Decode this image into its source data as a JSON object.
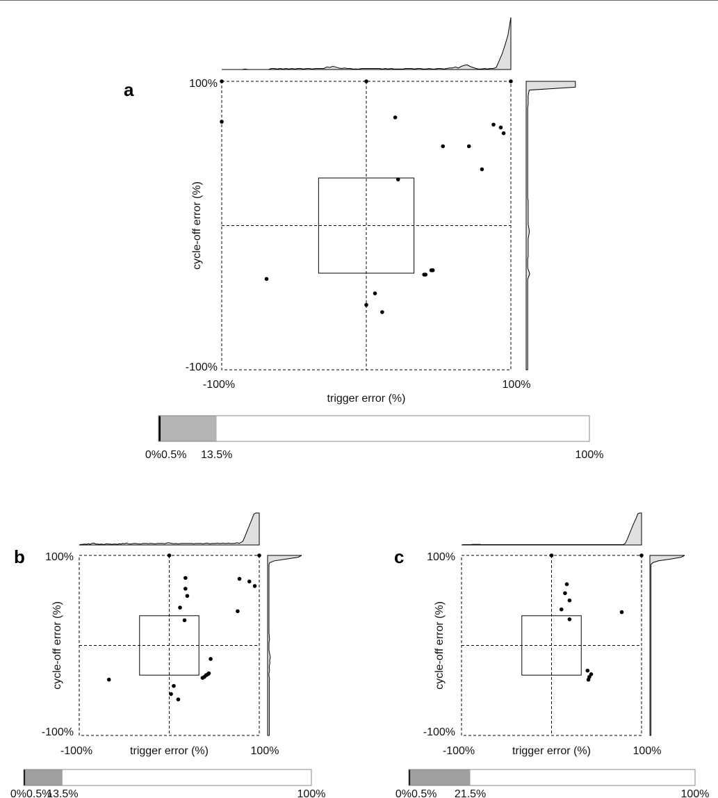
{
  "colors": {
    "marginal_fill": "#e0e0e0",
    "bar_fill_a": "#b4b4b4",
    "bar_fill_bc": "#a0a0a0",
    "ink": "#000000"
  },
  "chart_data": [
    {
      "panel": "a",
      "type": "scatter",
      "xlabel": "trigger error (%)",
      "ylabel": "cycle-off error (%)",
      "xlim": [
        -100,
        100
      ],
      "ylim": [
        -100,
        100
      ],
      "x_tick_labels": [
        "-100%",
        "100%"
      ],
      "y_tick_labels": [
        "100%",
        "-100%"
      ],
      "reference_lines": {
        "x": 0,
        "y": 0
      },
      "tolerance_box": {
        "x": [
          -33,
          33
        ],
        "y": [
          -33,
          33
        ]
      },
      "points": [
        [
          -100,
          100
        ],
        [
          0,
          100
        ],
        [
          100,
          100
        ],
        [
          -100,
          72
        ],
        [
          20,
          75
        ],
        [
          53,
          55
        ],
        [
          71,
          55
        ],
        [
          88,
          70
        ],
        [
          93,
          68
        ],
        [
          95,
          64
        ],
        [
          22,
          32
        ],
        [
          80,
          39
        ],
        [
          -69,
          -37
        ],
        [
          40,
          -34
        ],
        [
          41,
          -34
        ],
        [
          45,
          -31
        ],
        [
          46,
          -31
        ],
        [
          6,
          -47
        ],
        [
          0,
          -55
        ],
        [
          11,
          -60
        ]
      ],
      "top_marginal": [
        0,
        0,
        0,
        0,
        0,
        0,
        0,
        0,
        0.01,
        0,
        0,
        0,
        0,
        0,
        0,
        0,
        0,
        0.02,
        0.02,
        0.01,
        0.02,
        0.01,
        0.02,
        0.01,
        0.02,
        0.01,
        0.02,
        0.02,
        0.01,
        0.02,
        0.02,
        0.01,
        0.02,
        0.02,
        0.02,
        0.02,
        0.05,
        0.04,
        0.06,
        0.05,
        0.03,
        0.02,
        0.03,
        0.02,
        0.02,
        0.01,
        0.01,
        0.01,
        0.02,
        0.02,
        0.02,
        0.02,
        0.02,
        0.02,
        0.02,
        0.01,
        0.02,
        0.01,
        0.02,
        0.01,
        0.01,
        0.01,
        0.01,
        0.02,
        0.02,
        0.02,
        0.01,
        0.02,
        0.02,
        0.01,
        0.01,
        0.02,
        0.01,
        0.01,
        0.02,
        0.02,
        0.01,
        0.02,
        0.03,
        0.03,
        0.05,
        0.03,
        0.06,
        0.08,
        0.09,
        0.06,
        0.04,
        0.02,
        0.01,
        0.01,
        0.02,
        0.01,
        0.02,
        0.02,
        0.04,
        0.17,
        0.3,
        0.47,
        0.66,
        1.0
      ],
      "right_marginal": [
        0.97,
        0.97,
        0.97,
        0.06,
        0.05,
        0.04,
        0.04,
        0.04,
        0.04,
        0.03,
        0.03,
        0.03,
        0.03,
        0.03,
        0.03,
        0.03,
        0.03,
        0.03,
        0.03,
        0.03,
        0.03,
        0.03,
        0.03,
        0.03,
        0.03,
        0.03,
        0.03,
        0.03,
        0.03,
        0.03,
        0.03,
        0.03,
        0.03,
        0.03,
        0.03,
        0.03,
        0.03,
        0.03,
        0.03,
        0.03,
        0.03,
        0.04,
        0.04,
        0.04,
        0.04,
        0.04,
        0.04,
        0.04,
        0.04,
        0.04,
        0.05,
        0.06,
        0.06,
        0.05,
        0.04,
        0.04,
        0.04,
        0.04,
        0.04,
        0.04,
        0.04,
        0.03,
        0.03,
        0.03,
        0.03,
        0.05,
        0.07,
        0.05,
        0.03,
        0.03,
        0.03,
        0.03,
        0.03,
        0.03,
        0.03,
        0.03,
        0.03,
        0.03,
        0.03,
        0.03,
        0.03,
        0.03,
        0.03,
        0.03,
        0.03,
        0.03,
        0.03,
        0.03,
        0.03,
        0.03,
        0.03,
        0.03,
        0.03,
        0.03,
        0.03,
        0.03,
        0.03,
        0.03,
        0.03,
        0.03
      ],
      "summary_bar": {
        "segments": [
          {
            "label": "0%",
            "value": 0.5,
            "color": "#000000"
          },
          {
            "label": "0.5%",
            "value": 13.0,
            "color": "#b4b4b4"
          },
          {
            "label": "13.5%",
            "value": 86.5,
            "color": "#ffffff"
          }
        ],
        "tick_labels": [
          "0%",
          "0.5%",
          "13.5%",
          "100%"
        ],
        "tick_positions": [
          0,
          0.5,
          13.5,
          100
        ]
      }
    },
    {
      "panel": "b",
      "type": "scatter",
      "xlabel": "trigger error (%)",
      "ylabel": "cycle-off error (%)",
      "xlim": [
        -100,
        100
      ],
      "ylim": [
        -100,
        100
      ],
      "x_tick_labels": [
        "-100%",
        "100%"
      ],
      "y_tick_labels": [
        "100%",
        "-100%"
      ],
      "reference_lines": {
        "x": 0,
        "y": 0
      },
      "tolerance_box": {
        "x": [
          -33,
          33
        ],
        "y": [
          -33,
          33
        ]
      },
      "points": [
        [
          0,
          100
        ],
        [
          100,
          100
        ],
        [
          18,
          75
        ],
        [
          18,
          63
        ],
        [
          20,
          55
        ],
        [
          12,
          42
        ],
        [
          17,
          28
        ],
        [
          78,
          74
        ],
        [
          89,
          71
        ],
        [
          95,
          66
        ],
        [
          76,
          38
        ],
        [
          46,
          -15
        ],
        [
          44,
          -31
        ],
        [
          43,
          -32
        ],
        [
          41,
          -33
        ],
        [
          39,
          -35
        ],
        [
          37,
          -36
        ],
        [
          -67,
          -38
        ],
        [
          5,
          -45
        ],
        [
          2,
          -54
        ],
        [
          10,
          -60
        ]
      ],
      "top_marginal": [
        0,
        0.02,
        0.02,
        0.03,
        0.02,
        0.04,
        0.02,
        0.05,
        0.06,
        0.03,
        0.03,
        0.02,
        0.03,
        0.02,
        0.02,
        0.04,
        0.03,
        0.03,
        0.02,
        0.03,
        0.03,
        0.02,
        0.04,
        0.03,
        0.05,
        0.04,
        0.06,
        0.04,
        0.03,
        0.04,
        0.05,
        0.05,
        0.04,
        0.04,
        0.03,
        0.05,
        0.05,
        0.05,
        0.04,
        0.05,
        0.05,
        0.04,
        0.04,
        0.05,
        0.05,
        0.05,
        0.05,
        0.04,
        0.06,
        0.07,
        0.06,
        0.05,
        0.04,
        0.05,
        0.04,
        0.04,
        0.05,
        0.05,
        0.05,
        0.05,
        0.05,
        0.05,
        0.05,
        0.04,
        0.05,
        0.05,
        0.05,
        0.05,
        0.04,
        0.05,
        0.06,
        0.05,
        0.04,
        0.05,
        0.05,
        0.05,
        0.06,
        0.05,
        0.05,
        0.06,
        0.05,
        0.05,
        0.06,
        0.05,
        0.05,
        0.05,
        0.06,
        0.07,
        0.05,
        0.08,
        0.12,
        0.25,
        0.39,
        0.53,
        0.67,
        0.81,
        0.96,
        1.0,
        1.0,
        1.0
      ],
      "right_marginal": [
        1.0,
        0.9,
        0.55,
        0.2,
        0.06,
        0.04,
        0.04,
        0.04,
        0.04,
        0.04,
        0.04,
        0.04,
        0.04,
        0.04,
        0.04,
        0.04,
        0.04,
        0.04,
        0.04,
        0.04,
        0.04,
        0.04,
        0.04,
        0.04,
        0.04,
        0.04,
        0.04,
        0.04,
        0.04,
        0.04,
        0.04,
        0.04,
        0.04,
        0.04,
        0.04,
        0.04,
        0.04,
        0.04,
        0.04,
        0.04,
        0.04,
        0.04,
        0.04,
        0.04,
        0.05,
        0.05,
        0.06,
        0.05,
        0.04,
        0.04,
        0.04,
        0.04,
        0.04,
        0.05,
        0.06,
        0.07,
        0.08,
        0.07,
        0.06,
        0.07,
        0.06,
        0.05,
        0.05,
        0.06,
        0.05,
        0.04,
        0.04,
        0.05,
        0.06,
        0.05,
        0.05,
        0.05,
        0.05,
        0.05,
        0.05,
        0.05,
        0.05,
        0.05,
        0.05,
        0.05,
        0.05,
        0.05,
        0.05,
        0.05,
        0.05,
        0.05,
        0.05,
        0.05,
        0.05,
        0.05,
        0.05,
        0.05,
        0.05,
        0.05,
        0.05,
        0.05,
        0.05,
        0.05,
        0.05,
        0.05
      ],
      "summary_bar": {
        "segments": [
          {
            "label": "0%",
            "value": 0.5,
            "color": "#000000"
          },
          {
            "label": "0.5%",
            "value": 13.0,
            "color": "#a0a0a0"
          },
          {
            "label": "13.5%",
            "value": 86.5,
            "color": "#ffffff"
          }
        ],
        "tick_labels": [
          "0%",
          "0.5%",
          "13.5%",
          "100%"
        ],
        "tick_positions": [
          0,
          0.5,
          13.5,
          100
        ]
      }
    },
    {
      "panel": "c",
      "type": "scatter",
      "xlabel": "trigger error (%)",
      "ylabel": "cycle-off error (%)",
      "xlim": [
        -100,
        100
      ],
      "ylim": [
        -100,
        100
      ],
      "x_tick_labels": [
        "-100%",
        "100%"
      ],
      "y_tick_labels": [
        "100%",
        "-100%"
      ],
      "reference_lines": {
        "x": 0,
        "y": 0
      },
      "tolerance_box": {
        "x": [
          -33,
          33
        ],
        "y": [
          -33,
          33
        ]
      },
      "points": [
        [
          0,
          100
        ],
        [
          100,
          100
        ],
        [
          17,
          68
        ],
        [
          15,
          58
        ],
        [
          20,
          50
        ],
        [
          11,
          40
        ],
        [
          20,
          29
        ],
        [
          78,
          37
        ],
        [
          40,
          -28
        ],
        [
          44,
          -32
        ],
        [
          42,
          -35
        ],
        [
          41,
          -38
        ]
      ],
      "top_marginal": [
        0,
        0.01,
        0.01,
        0.01,
        0.01,
        0.01,
        0.02,
        0.02,
        0.02,
        0.02,
        0.02,
        0.01,
        0.01,
        0.01,
        0.01,
        0.01,
        0.01,
        0.01,
        0.01,
        0.01,
        0.01,
        0.01,
        0.01,
        0.01,
        0.01,
        0.01,
        0.01,
        0.01,
        0.01,
        0.01,
        0.01,
        0.01,
        0.01,
        0.01,
        0.01,
        0.01,
        0.01,
        0.01,
        0.01,
        0.01,
        0.01,
        0.01,
        0.01,
        0.01,
        0.01,
        0.01,
        0.01,
        0.01,
        0.01,
        0.01,
        0.01,
        0.01,
        0.01,
        0.01,
        0.01,
        0.01,
        0.01,
        0.01,
        0.01,
        0.01,
        0.01,
        0.01,
        0.01,
        0.01,
        0.01,
        0.01,
        0.01,
        0.01,
        0.01,
        0.01,
        0.01,
        0.01,
        0.01,
        0.01,
        0.01,
        0.01,
        0.01,
        0.01,
        0.01,
        0.01,
        0.01,
        0.01,
        0.01,
        0.01,
        0.01,
        0.01,
        0.01,
        0.01,
        0.01,
        0.01,
        0.05,
        0.16,
        0.3,
        0.44,
        0.58,
        0.71,
        0.84,
        0.98,
        1.0,
        1.0
      ],
      "right_marginal": [
        1.0,
        0.9,
        0.6,
        0.25,
        0.08,
        0.03,
        0.03,
        0.03,
        0.03,
        0.03,
        0.03,
        0.03,
        0.03,
        0.03,
        0.03,
        0.03,
        0.03,
        0.03,
        0.03,
        0.03,
        0.03,
        0.03,
        0.03,
        0.03,
        0.03,
        0.03,
        0.03,
        0.03,
        0.03,
        0.03,
        0.03,
        0.03,
        0.03,
        0.03,
        0.03,
        0.03,
        0.03,
        0.03,
        0.03,
        0.03,
        0.03,
        0.03,
        0.03,
        0.03,
        0.03,
        0.03,
        0.03,
        0.03,
        0.03,
        0.03,
        0.03,
        0.03,
        0.03,
        0.03,
        0.03,
        0.03,
        0.03,
        0.03,
        0.03,
        0.03,
        0.03,
        0.03,
        0.03,
        0.03,
        0.03,
        0.03,
        0.03,
        0.03,
        0.03,
        0.03,
        0.03,
        0.03,
        0.03,
        0.03,
        0.03,
        0.03,
        0.03,
        0.03,
        0.03,
        0.03,
        0.03,
        0.03,
        0.03,
        0.03,
        0.03,
        0.03,
        0.03,
        0.03,
        0.03,
        0.03,
        0.03,
        0.03,
        0.03,
        0.03,
        0.03,
        0.03,
        0.03,
        0.03,
        0.03,
        0.03
      ],
      "summary_bar": {
        "segments": [
          {
            "label": "0%",
            "value": 0.5,
            "color": "#000000"
          },
          {
            "label": "0.5%",
            "value": 21.0,
            "color": "#a0a0a0"
          },
          {
            "label": "21.5%",
            "value": 78.5,
            "color": "#ffffff"
          }
        ],
        "tick_labels": [
          "0%",
          "0.5%",
          "21.5%",
          "100%"
        ],
        "tick_positions": [
          0,
          0.5,
          21.5,
          100
        ]
      }
    }
  ]
}
